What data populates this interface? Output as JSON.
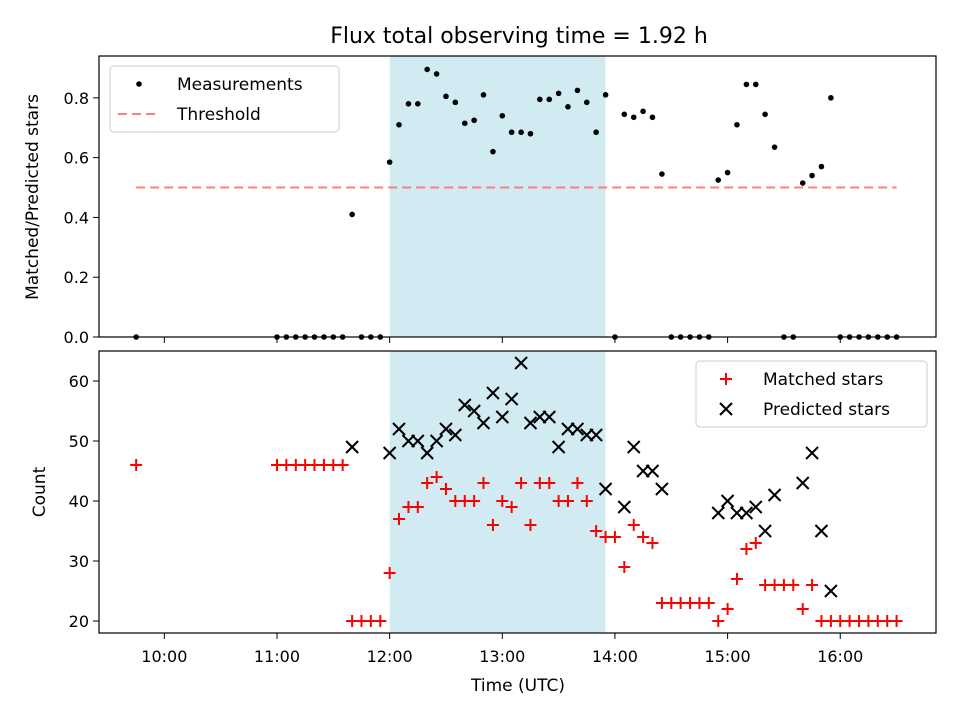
{
  "title": "Flux total observing time = 1.92 h",
  "chart_data": [
    {
      "type": "scatter",
      "ylabel": "Matched/Predicted stars",
      "ylim": [
        0,
        0.94
      ],
      "xlim_hours": [
        9.42,
        16.85
      ],
      "yticks": [
        0.0,
        0.2,
        0.4,
        0.6,
        0.8
      ],
      "ytick_labels": [
        "0.0",
        "0.2",
        "0.4",
        "0.6",
        "0.8"
      ],
      "shaded_interval": {
        "start": "12:00",
        "end": "13:55",
        "color": "#add8e6"
      },
      "legend": {
        "placement": "upper-left",
        "entries": [
          "Measurements",
          "Threshold"
        ]
      },
      "series": [
        {
          "name": "Measurements",
          "marker": "dot",
          "color": "#000000",
          "points": [
            [
              9.75,
              0.0
            ],
            [
              11.0,
              0.0
            ],
            [
              11.083,
              0.0
            ],
            [
              11.167,
              0.0
            ],
            [
              11.25,
              0.0
            ],
            [
              11.333,
              0.0
            ],
            [
              11.417,
              0.0
            ],
            [
              11.5,
              0.0
            ],
            [
              11.583,
              0.0
            ],
            [
              11.667,
              0.41
            ],
            [
              11.75,
              0.0
            ],
            [
              11.833,
              0.0
            ],
            [
              11.917,
              0.0
            ],
            [
              12.0,
              0.585
            ],
            [
              12.083,
              0.71
            ],
            [
              12.167,
              0.78
            ],
            [
              12.25,
              0.78
            ],
            [
              12.333,
              0.895
            ],
            [
              12.417,
              0.88
            ],
            [
              12.5,
              0.805
            ],
            [
              12.583,
              0.785
            ],
            [
              12.667,
              0.715
            ],
            [
              12.75,
              0.725
            ],
            [
              12.833,
              0.81
            ],
            [
              12.917,
              0.62
            ],
            [
              13.0,
              0.74
            ],
            [
              13.083,
              0.685
            ],
            [
              13.167,
              0.685
            ],
            [
              13.25,
              0.68
            ],
            [
              13.333,
              0.795
            ],
            [
              13.417,
              0.795
            ],
            [
              13.5,
              0.815
            ],
            [
              13.583,
              0.77
            ],
            [
              13.667,
              0.825
            ],
            [
              13.75,
              0.785
            ],
            [
              13.833,
              0.685
            ],
            [
              13.917,
              0.81
            ],
            [
              14.0,
              0.0
            ],
            [
              14.083,
              0.745
            ],
            [
              14.167,
              0.735
            ],
            [
              14.25,
              0.755
            ],
            [
              14.333,
              0.735
            ],
            [
              14.417,
              0.545
            ],
            [
              14.5,
              0.0
            ],
            [
              14.583,
              0.0
            ],
            [
              14.667,
              0.0
            ],
            [
              14.75,
              0.0
            ],
            [
              14.833,
              0.0
            ],
            [
              14.917,
              0.525
            ],
            [
              15.0,
              0.55
            ],
            [
              15.083,
              0.71
            ],
            [
              15.167,
              0.845
            ],
            [
              15.25,
              0.845
            ],
            [
              15.333,
              0.745
            ],
            [
              15.417,
              0.635
            ],
            [
              15.5,
              0.0
            ],
            [
              15.583,
              0.0
            ],
            [
              15.667,
              0.515
            ],
            [
              15.75,
              0.54
            ],
            [
              15.833,
              0.57
            ],
            [
              15.917,
              0.8
            ],
            [
              16.0,
              0.0
            ],
            [
              16.083,
              0.0
            ],
            [
              16.167,
              0.0
            ],
            [
              16.25,
              0.0
            ],
            [
              16.333,
              0.0
            ],
            [
              16.417,
              0.0
            ],
            [
              16.5,
              0.0
            ]
          ]
        },
        {
          "name": "Threshold",
          "marker": "dashed-line",
          "color": "#ff7f7f",
          "points": [
            [
              9.75,
              0.5
            ],
            [
              16.5,
              0.5
            ]
          ]
        }
      ]
    },
    {
      "type": "scatter",
      "xlabel": "Time (UTC)",
      "ylabel": "Count",
      "ylim": [
        18,
        65
      ],
      "xlim_hours": [
        9.42,
        16.85
      ],
      "yticks": [
        20,
        30,
        40,
        50,
        60
      ],
      "ytick_labels": [
        "20",
        "30",
        "40",
        "50",
        "60"
      ],
      "xticks": [
        10,
        11,
        12,
        13,
        14,
        15,
        16
      ],
      "xtick_labels": [
        "10:00",
        "11:00",
        "12:00",
        "13:00",
        "14:00",
        "15:00",
        "16:00"
      ],
      "shaded_interval": {
        "start": "12:00",
        "end": "13:55",
        "color": "#add8e6"
      },
      "legend": {
        "placement": "upper-right",
        "entries": [
          "Matched stars",
          "Predicted stars"
        ]
      },
      "series": [
        {
          "name": "Matched stars",
          "marker": "plus",
          "color": "#ff0000",
          "points": [
            [
              9.75,
              46
            ],
            [
              11.0,
              46
            ],
            [
              11.083,
              46
            ],
            [
              11.167,
              46
            ],
            [
              11.25,
              46
            ],
            [
              11.333,
              46
            ],
            [
              11.417,
              46
            ],
            [
              11.5,
              46
            ],
            [
              11.583,
              46
            ],
            [
              11.667,
              20
            ],
            [
              11.75,
              20
            ],
            [
              11.833,
              20
            ],
            [
              11.917,
              20
            ],
            [
              12.0,
              28
            ],
            [
              12.083,
              37
            ],
            [
              12.167,
              39
            ],
            [
              12.25,
              39
            ],
            [
              12.333,
              43
            ],
            [
              12.417,
              44
            ],
            [
              12.5,
              42
            ],
            [
              12.583,
              40
            ],
            [
              12.667,
              40
            ],
            [
              12.75,
              40
            ],
            [
              12.833,
              43
            ],
            [
              12.917,
              36
            ],
            [
              13.0,
              40
            ],
            [
              13.083,
              39
            ],
            [
              13.167,
              43
            ],
            [
              13.25,
              36
            ],
            [
              13.333,
              43
            ],
            [
              13.417,
              43
            ],
            [
              13.5,
              40
            ],
            [
              13.583,
              40
            ],
            [
              13.667,
              43
            ],
            [
              13.75,
              40
            ],
            [
              13.833,
              35
            ],
            [
              13.917,
              34
            ],
            [
              14.0,
              34
            ],
            [
              14.083,
              29
            ],
            [
              14.167,
              36
            ],
            [
              14.25,
              34
            ],
            [
              14.333,
              33
            ],
            [
              14.417,
              23
            ],
            [
              14.5,
              23
            ],
            [
              14.583,
              23
            ],
            [
              14.667,
              23
            ],
            [
              14.75,
              23
            ],
            [
              14.833,
              23
            ],
            [
              14.917,
              20
            ],
            [
              15.0,
              22
            ],
            [
              15.083,
              27
            ],
            [
              15.167,
              32
            ],
            [
              15.25,
              33
            ],
            [
              15.333,
              26
            ],
            [
              15.417,
              26
            ],
            [
              15.5,
              26
            ],
            [
              15.583,
              26
            ],
            [
              15.667,
              22
            ],
            [
              15.75,
              26
            ],
            [
              15.833,
              20
            ],
            [
              15.917,
              20
            ],
            [
              16.0,
              20
            ],
            [
              16.083,
              20
            ],
            [
              16.167,
              20
            ],
            [
              16.25,
              20
            ],
            [
              16.333,
              20
            ],
            [
              16.417,
              20
            ],
            [
              16.5,
              20
            ]
          ]
        },
        {
          "name": "Predicted stars",
          "marker": "x",
          "color": "#000000",
          "points": [
            [
              11.667,
              49
            ],
            [
              12.0,
              48
            ],
            [
              12.083,
              52
            ],
            [
              12.167,
              50
            ],
            [
              12.25,
              50
            ],
            [
              12.333,
              48
            ],
            [
              12.417,
              50
            ],
            [
              12.5,
              52
            ],
            [
              12.583,
              51
            ],
            [
              12.667,
              56
            ],
            [
              12.75,
              55
            ],
            [
              12.833,
              53
            ],
            [
              12.917,
              58
            ],
            [
              13.0,
              54
            ],
            [
              13.083,
              57
            ],
            [
              13.167,
              63
            ],
            [
              13.25,
              53
            ],
            [
              13.333,
              54
            ],
            [
              13.417,
              54
            ],
            [
              13.5,
              49
            ],
            [
              13.583,
              52
            ],
            [
              13.667,
              52
            ],
            [
              13.75,
              51
            ],
            [
              13.833,
              51
            ],
            [
              13.917,
              42
            ],
            [
              14.083,
              39
            ],
            [
              14.167,
              49
            ],
            [
              14.25,
              45
            ],
            [
              14.333,
              45
            ],
            [
              14.417,
              42
            ],
            [
              14.917,
              38
            ],
            [
              15.0,
              40
            ],
            [
              15.083,
              38
            ],
            [
              15.167,
              38
            ],
            [
              15.25,
              39
            ],
            [
              15.333,
              35
            ],
            [
              15.417,
              41
            ],
            [
              15.667,
              43
            ],
            [
              15.75,
              48
            ],
            [
              15.833,
              35
            ],
            [
              15.917,
              25
            ]
          ]
        }
      ]
    }
  ]
}
